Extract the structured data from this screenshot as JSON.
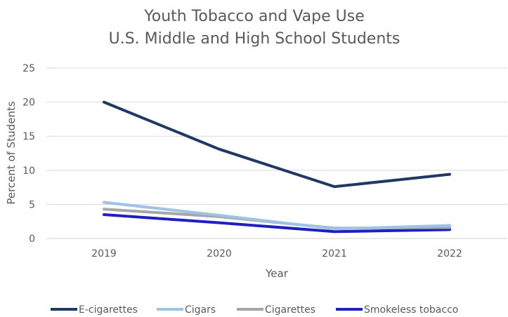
{
  "chart_data": {
    "type": "line",
    "title_lines": [
      "Youth Tobacco and Vape Use",
      "U.S. Middle and High School Students"
    ],
    "xlabel": "Year",
    "ylabel": "Percent of Students",
    "categories": [
      "2019",
      "2020",
      "2021",
      "2022"
    ],
    "y_ticks": [
      "0",
      "5",
      "10",
      "15",
      "20",
      "25"
    ],
    "ylim": [
      0,
      25
    ],
    "grid": true,
    "legend_position": "bottom",
    "series": [
      {
        "name": "E-cigarettes",
        "color": "#203864",
        "values": [
          20.0,
          13.1,
          7.6,
          9.4
        ]
      },
      {
        "name": "Cigars",
        "color": "#9dc3e6",
        "values": [
          5.3,
          3.4,
          1.4,
          1.9
        ]
      },
      {
        "name": "Cigarettes",
        "color": "#a6a6a6",
        "values": [
          4.3,
          3.2,
          1.5,
          1.6
        ]
      },
      {
        "name": "Smokeless tobacco",
        "color": "#1f1fbf",
        "values": [
          3.5,
          2.3,
          1.0,
          1.3
        ]
      }
    ]
  }
}
